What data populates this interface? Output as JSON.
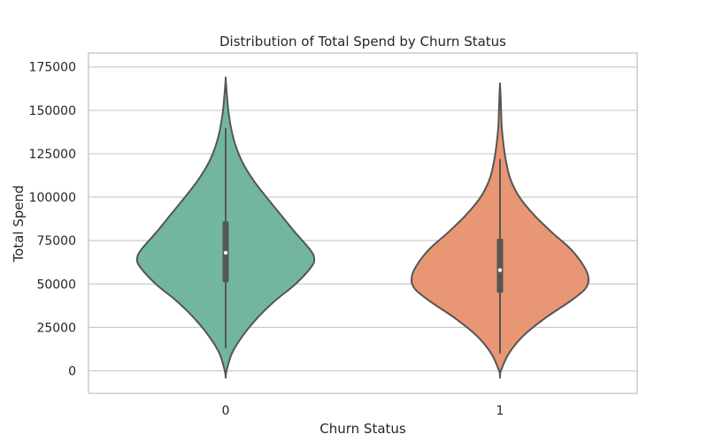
{
  "chart_data": {
    "type": "violin",
    "title": "Distribution of Total Spend by Churn Status",
    "xlabel": "Churn Status",
    "ylabel": "Total Spend",
    "categories": [
      "0",
      "1"
    ],
    "ylim": [
      -13000,
      183000
    ],
    "yticks": [
      0,
      25000,
      50000,
      75000,
      100000,
      125000,
      150000,
      175000
    ],
    "ytick_labels": [
      "0",
      "25000",
      "50000",
      "75000",
      "100000",
      "125000",
      "150000",
      "175000"
    ],
    "grid": "horizontal",
    "colors": [
      "#73b6a0",
      "#e89673"
    ],
    "outline_color": "#555555",
    "violins": [
      {
        "category": "0",
        "min": 13000,
        "q1": 51000,
        "median": 68000,
        "q3": 86000,
        "max": 140000,
        "density_profile": [
          {
            "y": -4000,
            "w": 0.0
          },
          {
            "y": 0,
            "w": 0.01
          },
          {
            "y": 10000,
            "w": 0.07
          },
          {
            "y": 20000,
            "w": 0.19
          },
          {
            "y": 30000,
            "w": 0.35
          },
          {
            "y": 40000,
            "w": 0.55
          },
          {
            "y": 50000,
            "w": 0.79
          },
          {
            "y": 60000,
            "w": 0.97
          },
          {
            "y": 65000,
            "w": 1.0
          },
          {
            "y": 70000,
            "w": 0.95
          },
          {
            "y": 80000,
            "w": 0.78
          },
          {
            "y": 90000,
            "w": 0.62
          },
          {
            "y": 100000,
            "w": 0.46
          },
          {
            "y": 110000,
            "w": 0.31
          },
          {
            "y": 120000,
            "w": 0.19
          },
          {
            "y": 130000,
            "w": 0.11
          },
          {
            "y": 140000,
            "w": 0.06
          },
          {
            "y": 150000,
            "w": 0.03
          },
          {
            "y": 160000,
            "w": 0.012
          },
          {
            "y": 168000,
            "w": 0.0
          }
        ]
      },
      {
        "category": "1",
        "min": 10000,
        "q1": 45000,
        "median": 58000,
        "q3": 76000,
        "max": 122000,
        "density_profile": [
          {
            "y": -4000,
            "w": 0.0
          },
          {
            "y": 0,
            "w": 0.01
          },
          {
            "y": 10000,
            "w": 0.1
          },
          {
            "y": 20000,
            "w": 0.26
          },
          {
            "y": 30000,
            "w": 0.5
          },
          {
            "y": 40000,
            "w": 0.79
          },
          {
            "y": 47000,
            "w": 0.96
          },
          {
            "y": 53000,
            "w": 1.0
          },
          {
            "y": 60000,
            "w": 0.95
          },
          {
            "y": 70000,
            "w": 0.8
          },
          {
            "y": 80000,
            "w": 0.58
          },
          {
            "y": 90000,
            "w": 0.38
          },
          {
            "y": 100000,
            "w": 0.22
          },
          {
            "y": 110000,
            "w": 0.12
          },
          {
            "y": 120000,
            "w": 0.07
          },
          {
            "y": 130000,
            "w": 0.04
          },
          {
            "y": 140000,
            "w": 0.02
          },
          {
            "y": 150000,
            "w": 0.012
          },
          {
            "y": 160000,
            "w": 0.005
          },
          {
            "y": 165000,
            "w": 0.0
          }
        ]
      }
    ]
  }
}
